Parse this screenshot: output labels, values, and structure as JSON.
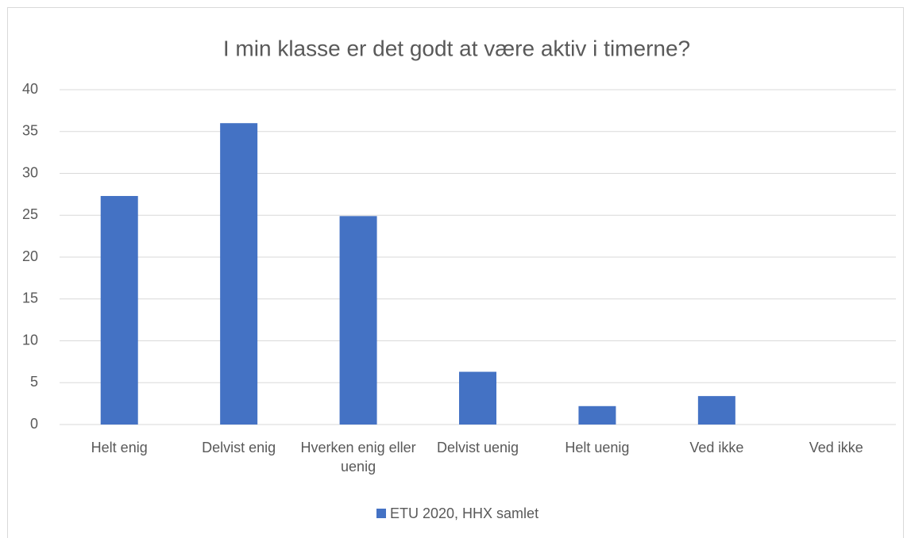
{
  "chart_data": {
    "type": "bar",
    "title": "I min klasse er det godt at være aktiv i timerne?",
    "categories": [
      "Helt enig",
      "Delvist enig",
      "Hverken enig eller uenig",
      "Delvist uenig",
      "Helt uenig",
      "Ved ikke",
      "Ved ikke"
    ],
    "series": [
      {
        "name": "ETU 2020, HHX samlet",
        "color": "#4472c4",
        "values": [
          27.3,
          36,
          24.9,
          6.3,
          2.2,
          3.4,
          0
        ]
      }
    ],
    "ylim": [
      0,
      40
    ],
    "yticks": [
      0,
      5,
      10,
      15,
      20,
      25,
      30,
      35,
      40
    ],
    "grid": true,
    "legend": "bottom"
  }
}
